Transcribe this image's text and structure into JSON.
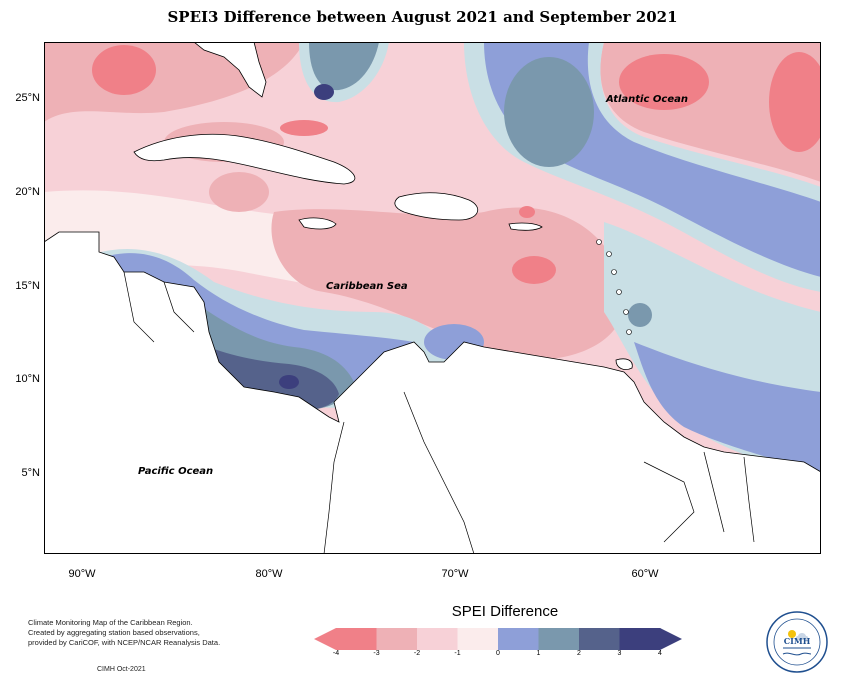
{
  "title": "SPEI3 Difference between August 2021 and September 2021",
  "map": {
    "lat_labels": [
      "25°N",
      "20°N",
      "15°N",
      "10°N",
      "5°N"
    ],
    "lon_labels": [
      "90°W",
      "80°W",
      "70°W",
      "60°W"
    ],
    "ocean_labels": {
      "atlantic": "Atlantic Ocean",
      "caribbean": "Caribbean Sea",
      "pacific": "Pacific Ocean"
    },
    "colors": {
      "-4": "#f08088",
      "-3": "#eeb1b6",
      "-2": "#f7d1d7",
      "-1": "#fbecec",
      "0": "#c9dfe5",
      "1": "#8e9fd8",
      "2": "#7a98ad",
      "3": "#55628b",
      "4": "#3c3f7d",
      "land": "#ffffff"
    }
  },
  "legend": {
    "title": "SPEI Difference",
    "ticks": [
      "-4",
      "-3",
      "-2",
      "-1",
      "0",
      "1",
      "2",
      "3",
      "4"
    ],
    "colors": [
      "#f08088",
      "#eeb1b6",
      "#f7d1d7",
      "#fbecec",
      "#c9dfe5",
      "#8e9fd8",
      "#7a98ad",
      "#55628b",
      "#3c3f7d"
    ]
  },
  "credit": {
    "line1": "Climate Monitoring Map of the Caribbean Region.",
    "line2": "Created by aggregating station based observations,",
    "line3": "provided by CariCOF, with NCEP/NCAR Reanalysis Data.",
    "date": "CIMH Oct-2021"
  },
  "logo": {
    "text": "CIMH"
  }
}
